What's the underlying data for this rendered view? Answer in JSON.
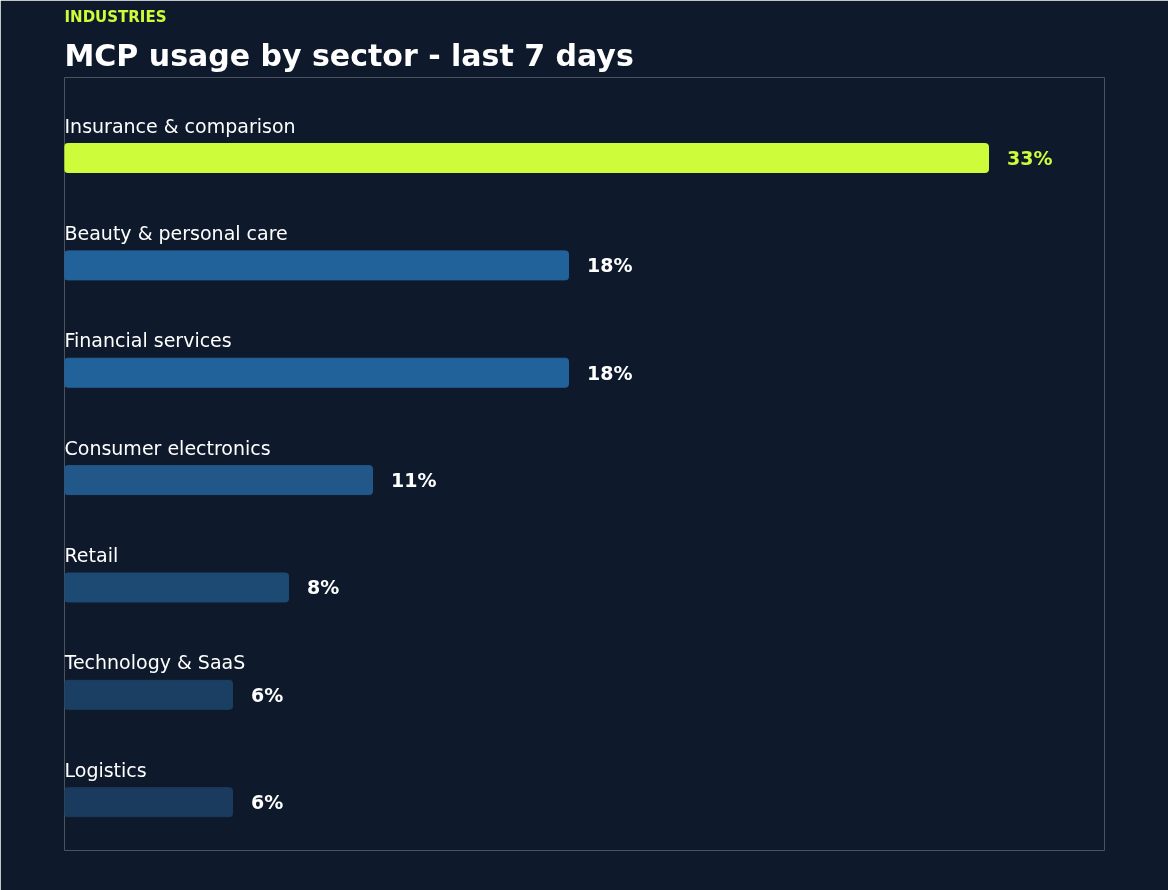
{
  "chart_data": {
    "type": "bar",
    "orientation": "horizontal",
    "subtitle": "INDUSTRIES",
    "title": "MCP usage by sector - last 7 days",
    "categories": [
      "Insurance & comparison",
      "Beauty & personal care",
      "Financial services",
      "Consumer electronics",
      "Retail",
      "Technology & SaaS",
      "Logistics"
    ],
    "values": [
      33,
      18,
      18,
      11,
      8,
      6,
      6
    ],
    "value_labels": [
      "33%",
      "18%",
      "18%",
      "11%",
      "8%",
      "6%",
      "6%"
    ],
    "colors": [
      "#ccfc3a",
      "#22629b",
      "#22629b",
      "#215889",
      "#1d4a72",
      "#1b3f63",
      "#1a3b5e"
    ],
    "grid": false,
    "tick_labels": false
  }
}
